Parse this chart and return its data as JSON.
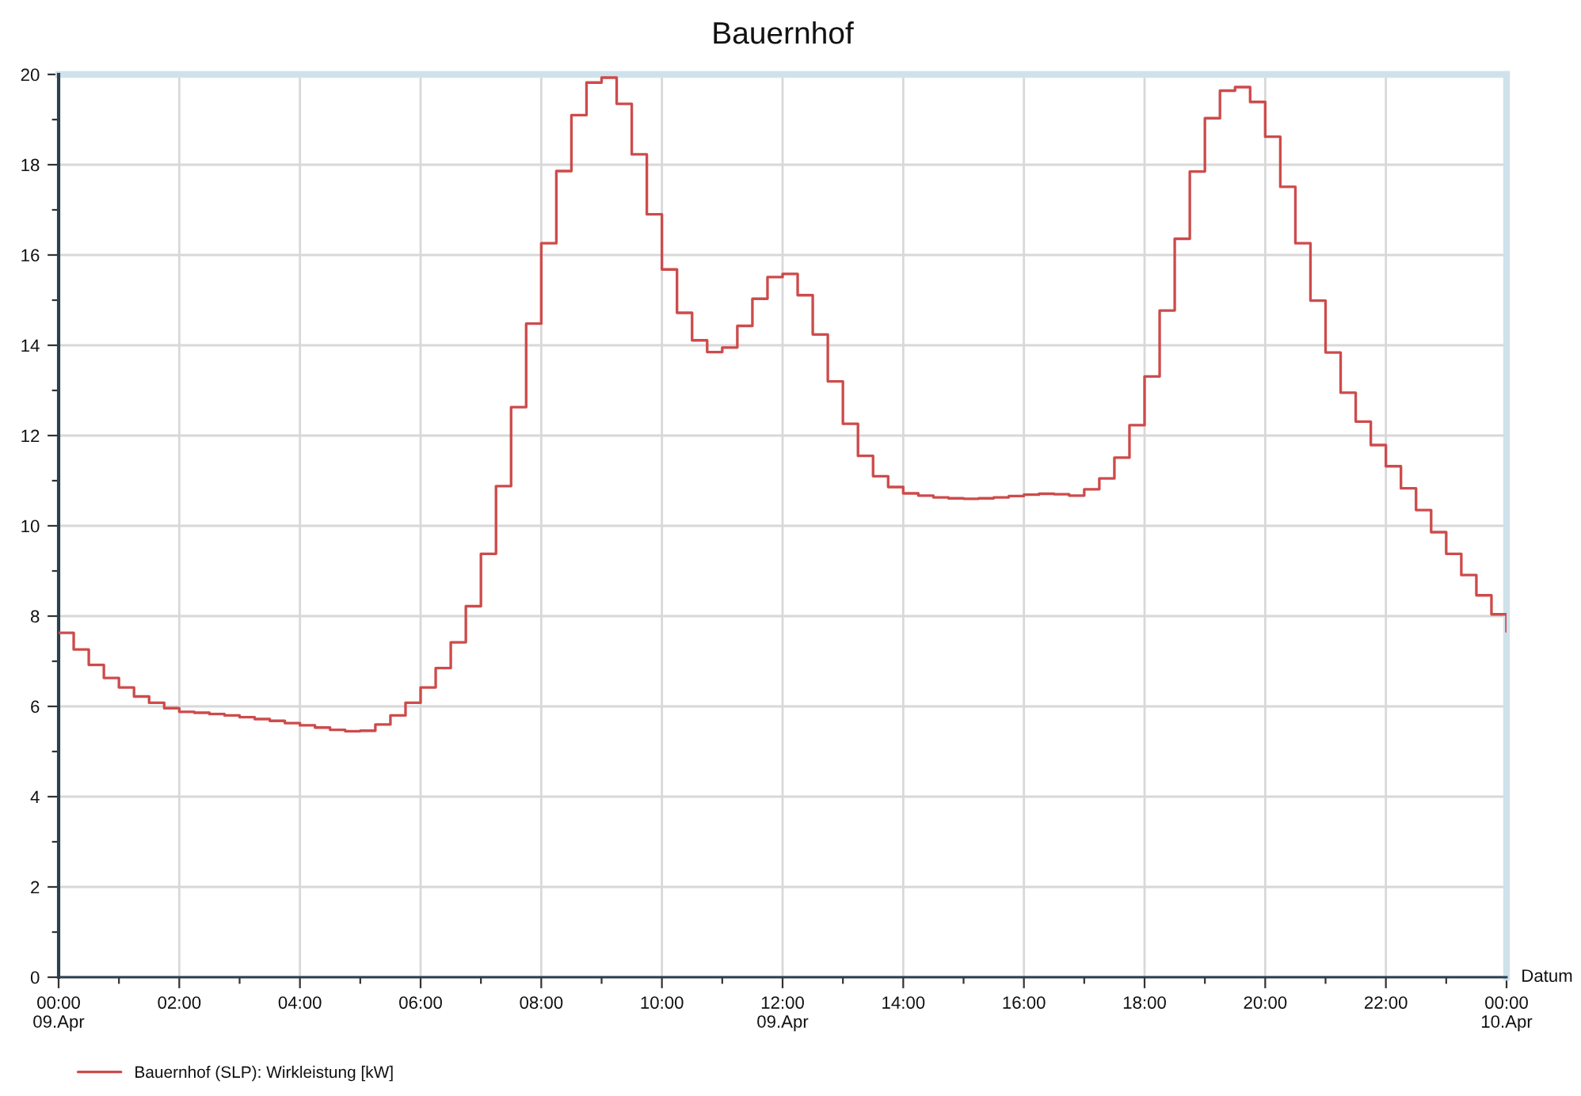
{
  "chart_data": {
    "type": "step",
    "title": "Bauernhof",
    "xlabel": "Datum",
    "x": [
      0,
      0.25,
      0.5,
      0.75,
      1,
      1.25,
      1.5,
      1.75,
      2,
      2.25,
      2.5,
      2.75,
      3,
      3.25,
      3.5,
      3.75,
      4,
      4.25,
      4.5,
      4.75,
      5,
      5.25,
      5.5,
      5.75,
      6,
      6.25,
      6.5,
      6.75,
      7,
      7.25,
      7.5,
      7.75,
      8,
      8.25,
      8.5,
      8.75,
      9,
      9.25,
      9.5,
      9.75,
      10,
      10.25,
      10.5,
      10.75,
      11,
      11.25,
      11.5,
      11.75,
      12,
      12.25,
      12.5,
      12.75,
      13,
      13.25,
      13.5,
      13.75,
      14,
      14.25,
      14.5,
      14.75,
      15,
      15.25,
      15.5,
      15.75,
      16,
      16.25,
      16.5,
      16.75,
      17,
      17.25,
      17.5,
      17.75,
      18,
      18.25,
      18.5,
      18.75,
      19,
      19.25,
      19.5,
      19.75,
      20,
      20.25,
      20.5,
      20.75,
      21,
      21.25,
      21.5,
      21.75,
      22,
      22.25,
      22.5,
      22.75,
      23,
      23.25,
      23.5,
      23.75,
      24
    ],
    "series": [
      {
        "name": "Bauernhof (SLP): Wirkleistung [kW]",
        "color": "#cd4b4b",
        "values": [
          7.63,
          7.26,
          6.92,
          6.63,
          6.42,
          6.22,
          6.08,
          5.96,
          5.88,
          5.86,
          5.83,
          5.8,
          5.76,
          5.72,
          5.68,
          5.63,
          5.58,
          5.53,
          5.48,
          5.45,
          5.46,
          5.6,
          5.8,
          6.08,
          6.42,
          6.85,
          7.42,
          8.22,
          9.38,
          10.88,
          12.63,
          14.48,
          16.26,
          17.86,
          19.1,
          19.82,
          19.93,
          19.35,
          18.23,
          16.9,
          15.68,
          14.72,
          14.11,
          13.85,
          13.95,
          14.43,
          15.03,
          15.51,
          15.58,
          15.11,
          14.24,
          13.2,
          12.26,
          11.55,
          11.1,
          10.86,
          10.72,
          10.67,
          10.63,
          10.61,
          10.6,
          10.61,
          10.63,
          10.66,
          10.69,
          10.71,
          10.7,
          10.67,
          10.81,
          11.05,
          11.51,
          12.23,
          13.31,
          14.77,
          16.36,
          17.85,
          19.03,
          19.64,
          19.72,
          19.39,
          18.62,
          17.51,
          16.26,
          14.99,
          13.84,
          12.95,
          12.31,
          11.79,
          11.32,
          10.83,
          10.35,
          9.86,
          9.38,
          8.91,
          8.46,
          8.04,
          7.66
        ]
      }
    ],
    "xlim": [
      0,
      24
    ],
    "xticks": [
      {
        "value": 0,
        "label": "00:00\n09.Apr"
      },
      {
        "value": 1,
        "label": null
      },
      {
        "value": 2,
        "label": "02:00"
      },
      {
        "value": 3,
        "label": null
      },
      {
        "value": 4,
        "label": "04:00"
      },
      {
        "value": 5,
        "label": null
      },
      {
        "value": 6,
        "label": "06:00"
      },
      {
        "value": 7,
        "label": null
      },
      {
        "value": 8,
        "label": "08:00"
      },
      {
        "value": 9,
        "label": null
      },
      {
        "value": 10,
        "label": "10:00"
      },
      {
        "value": 11,
        "label": null
      },
      {
        "value": 12,
        "label": "12:00\n09.Apr"
      },
      {
        "value": 13,
        "label": null
      },
      {
        "value": 14,
        "label": "14:00"
      },
      {
        "value": 15,
        "label": null
      },
      {
        "value": 16,
        "label": "16:00"
      },
      {
        "value": 17,
        "label": null
      },
      {
        "value": 18,
        "label": "18:00"
      },
      {
        "value": 19,
        "label": null
      },
      {
        "value": 20,
        "label": "20:00"
      },
      {
        "value": 21,
        "label": null
      },
      {
        "value": 22,
        "label": "22:00"
      },
      {
        "value": 23,
        "label": null
      },
      {
        "value": 24,
        "label": "00:00\n10.Apr"
      }
    ],
    "ylim": [
      0,
      20
    ],
    "yticks": [
      0,
      {
        "value": 1,
        "label": null
      },
      2,
      {
        "value": 3,
        "label": null
      },
      4,
      {
        "value": 5,
        "label": null
      },
      6,
      {
        "value": 7,
        "label": null
      },
      8,
      {
        "value": 9,
        "label": null
      },
      10,
      {
        "value": 11,
        "label": null
      },
      12,
      {
        "value": 13,
        "label": null
      },
      14,
      {
        "value": 15,
        "label": null
      },
      16,
      {
        "value": 17,
        "label": null
      },
      18,
      {
        "value": 19,
        "label": null
      },
      20
    ],
    "grid": true,
    "legend": "bottom left"
  }
}
